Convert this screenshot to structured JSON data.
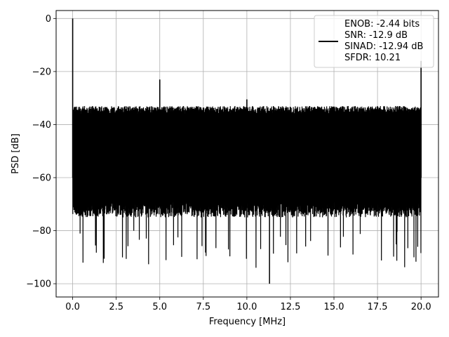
{
  "chart_data": {
    "type": "line",
    "title": "",
    "xlabel": "Frequency [MHz]",
    "ylabel": "PSD [dB]",
    "xlim": [
      -0.95,
      21.0
    ],
    "ylim": [
      -105,
      3
    ],
    "xticks": [
      0.0,
      2.5,
      5.0,
      7.5,
      10.0,
      12.5,
      15.0,
      17.5,
      20.0
    ],
    "xtick_labels": [
      "0.0",
      "2.5",
      "5.0",
      "7.5",
      "10.0",
      "12.5",
      "15.0",
      "17.5",
      "20.0"
    ],
    "yticks": [
      0,
      -20,
      -40,
      -60,
      -80,
      -100
    ],
    "ytick_labels": [
      "0",
      "−20",
      "−40",
      "−60",
      "−80",
      "−100"
    ],
    "grid": true,
    "legend_position": "top-right",
    "series": [
      {
        "name": "",
        "color": "#000000",
        "noise_floor_band_db": [
          -72,
          -34
        ],
        "noise_min_db": -100,
        "peaks": [
          {
            "x": 0.0,
            "y": 0
          },
          {
            "x": 5.0,
            "y": -23
          },
          {
            "x": 10.0,
            "y": -30.5
          },
          {
            "x": 20.0,
            "y": -16
          }
        ]
      }
    ],
    "legend": {
      "line_color": "#000000",
      "lines": [
        "ENOB: -2.44 bits",
        "SNR: -12.9 dB",
        "SINAD: -12.94 dB",
        "SFDR: 10.21"
      ]
    }
  }
}
